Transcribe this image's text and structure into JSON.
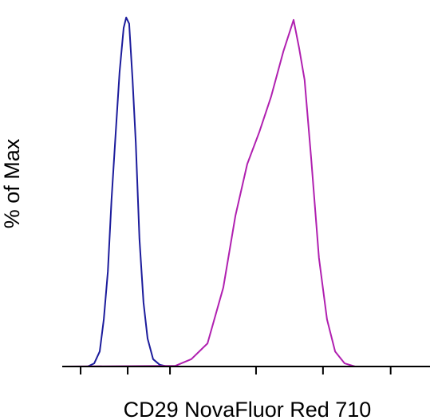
{
  "chart_data": {
    "type": "line",
    "x_label": "CD29 NovaFluor Red 710",
    "y_label": "% of Max",
    "xlim": [
      0,
      1000
    ],
    "ylim": [
      0,
      105
    ],
    "xticks": [
      50,
      178,
      293,
      527,
      709,
      893
    ],
    "series": [
      {
        "color": "#1c1c9c",
        "x": [
          0,
          69,
          87,
          102,
          113,
          124,
          134,
          145,
          156,
          167,
          174,
          182,
          191,
          200,
          210,
          221,
          232,
          247,
          265,
          286,
          1000
        ],
        "values": [
          0,
          0,
          0.9,
          4.3,
          13.5,
          27.2,
          47.8,
          66.1,
          84.4,
          97,
          100,
          98.2,
          82.4,
          64.1,
          36.6,
          18.3,
          8,
          2.1,
          0.5,
          0,
          0
        ]
      },
      {
        "color": "#b020b0",
        "x": [
          0,
          308,
          351,
          395,
          438,
          471,
          503,
          536,
          568,
          601,
          629,
          644,
          659,
          677,
          698,
          720,
          742,
          768,
          796,
          1000
        ],
        "values": [
          0,
          0.2,
          2.1,
          6.6,
          22.6,
          43.2,
          58,
          67.2,
          77.3,
          90.2,
          99.3,
          91.3,
          82.1,
          59.5,
          31.1,
          13.5,
          4.3,
          0.9,
          0,
          0
        ]
      }
    ]
  }
}
